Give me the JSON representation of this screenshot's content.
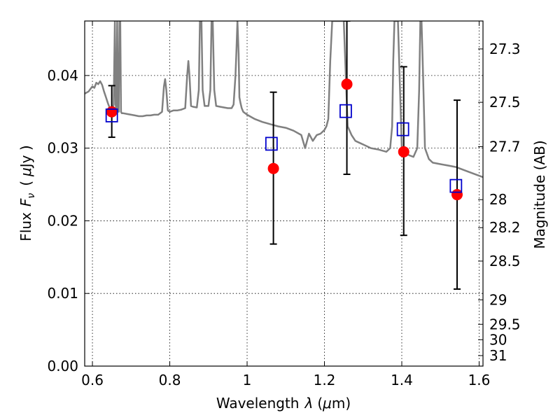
{
  "chart_data": {
    "type": "scatter",
    "title": "",
    "xlabel": "Wavelength",
    "xlabel_symbol": "λ",
    "xlabel_unit_open": "(",
    "xlabel_unit_mu": "μ",
    "xlabel_unit_rest": "m)",
    "ylabel": "Flux",
    "ylabel_symbol": "F",
    "ylabel_symbol_sub": "ν",
    "ylabel_unit_open": "(",
    "ylabel_unit_mu": "μ",
    "ylabel_unit_rest": "Jy )",
    "y2label": "Magnitude (AB)",
    "xlim": [
      0.58,
      1.61
    ],
    "ylim": [
      0.0,
      0.0475
    ],
    "grid": true,
    "x_ticks": [
      {
        "value": 0.6,
        "label": "0.6"
      },
      {
        "value": 0.8,
        "label": "0.8"
      },
      {
        "value": 1.0,
        "label": "1"
      },
      {
        "value": 1.2,
        "label": "1.2"
      },
      {
        "value": 1.4,
        "label": "1.4"
      },
      {
        "value": 1.6,
        "label": "1.6"
      }
    ],
    "y_ticks": [
      {
        "value": 0.0,
        "label": "0.00"
      },
      {
        "value": 0.01,
        "label": "0.01"
      },
      {
        "value": 0.02,
        "label": "0.02"
      },
      {
        "value": 0.03,
        "label": "0.03"
      },
      {
        "value": 0.04,
        "label": "0.04"
      }
    ],
    "y2_ticks": [
      {
        "mag": 27.3,
        "label": "27.3"
      },
      {
        "mag": 27.5,
        "label": "27.5"
      },
      {
        "mag": 27.7,
        "label": "27.7"
      },
      {
        "mag": 28.0,
        "label": "28"
      },
      {
        "mag": 28.2,
        "label": "28.2"
      },
      {
        "mag": 28.5,
        "label": "28.5"
      },
      {
        "mag": 29.0,
        "label": "29"
      },
      {
        "mag": 29.5,
        "label": "29.5"
      },
      {
        "mag": 30.0,
        "label": "30"
      },
      {
        "mag": 31.0,
        "label": "31"
      }
    ],
    "colors": {
      "observed": "#ff0000",
      "model": "#0000cc",
      "spectrum": "#808080",
      "errorbar": "#000000",
      "grid": "#000000"
    },
    "observed": [
      {
        "x": 0.65,
        "y": 0.035,
        "yerr_low": 0.0315,
        "yerr_high": 0.0386
      },
      {
        "x": 1.068,
        "y": 0.0272,
        "yerr_low": 0.0168,
        "yerr_high": 0.0377
      },
      {
        "x": 1.258,
        "y": 0.0388,
        "yerr_low": 0.0264,
        "yerr_high": 0.0475
      },
      {
        "x": 1.405,
        "y": 0.0295,
        "yerr_low": 0.018,
        "yerr_high": 0.0412
      },
      {
        "x": 1.543,
        "y": 0.0236,
        "yerr_low": 0.0106,
        "yerr_high": 0.0366
      }
    ],
    "model_points": [
      {
        "x": 0.65,
        "y": 0.0345
      },
      {
        "x": 1.063,
        "y": 0.0306
      },
      {
        "x": 1.255,
        "y": 0.0351
      },
      {
        "x": 1.403,
        "y": 0.0326
      },
      {
        "x": 1.54,
        "y": 0.0248
      }
    ],
    "spectrum": {
      "x": [
        0.58,
        0.59,
        0.6,
        0.605,
        0.61,
        0.615,
        0.62,
        0.625,
        0.63,
        0.635,
        0.64,
        0.645,
        0.65,
        0.655,
        0.658,
        0.66,
        0.662,
        0.664,
        0.666,
        0.668,
        0.67,
        0.672,
        0.674,
        0.676,
        0.68,
        0.69,
        0.7,
        0.71,
        0.72,
        0.73,
        0.74,
        0.75,
        0.76,
        0.77,
        0.78,
        0.785,
        0.788,
        0.791,
        0.795,
        0.8,
        0.81,
        0.82,
        0.83,
        0.84,
        0.845,
        0.848,
        0.851,
        0.855,
        0.86,
        0.87,
        0.875,
        0.878,
        0.88,
        0.882,
        0.885,
        0.89,
        0.895,
        0.9,
        0.905,
        0.908,
        0.911,
        0.915,
        0.92,
        0.93,
        0.94,
        0.95,
        0.96,
        0.965,
        0.97,
        0.972,
        0.975,
        0.978,
        0.98,
        0.983,
        0.986,
        0.99,
        1.0,
        1.02,
        1.04,
        1.06,
        1.08,
        1.1,
        1.12,
        1.14,
        1.15,
        1.16,
        1.17,
        1.18,
        1.19,
        1.2,
        1.205,
        1.21,
        1.215,
        1.22,
        1.23,
        1.24,
        1.25,
        1.26,
        1.27,
        1.28,
        1.3,
        1.32,
        1.34,
        1.36,
        1.37,
        1.375,
        1.378,
        1.381,
        1.385,
        1.39,
        1.4,
        1.41,
        1.42,
        1.43,
        1.44,
        1.445,
        1.448,
        1.451,
        1.455,
        1.46,
        1.47,
        1.48,
        1.5,
        1.52,
        1.54,
        1.56,
        1.58,
        1.6,
        1.61
      ],
      "y": [
        0.0375,
        0.0378,
        0.0385,
        0.0383,
        0.039,
        0.0388,
        0.0392,
        0.0387,
        0.0378,
        0.037,
        0.0362,
        0.0355,
        0.035,
        0.036,
        0.0475,
        0.036,
        0.0352,
        0.0475,
        0.0352,
        0.035,
        0.0475,
        0.0475,
        0.035,
        0.0348,
        0.0348,
        0.0347,
        0.0346,
        0.0345,
        0.0344,
        0.0344,
        0.0345,
        0.0345,
        0.0346,
        0.0346,
        0.035,
        0.0385,
        0.0395,
        0.038,
        0.0352,
        0.035,
        0.0352,
        0.0352,
        0.0353,
        0.0355,
        0.04,
        0.042,
        0.04,
        0.0358,
        0.0357,
        0.0356,
        0.038,
        0.0475,
        0.0475,
        0.0475,
        0.038,
        0.0358,
        0.0358,
        0.0358,
        0.038,
        0.0475,
        0.0475,
        0.038,
        0.0358,
        0.0357,
        0.0356,
        0.0355,
        0.0355,
        0.036,
        0.04,
        0.043,
        0.0475,
        0.043,
        0.037,
        0.0362,
        0.0355,
        0.035,
        0.0346,
        0.034,
        0.0336,
        0.0333,
        0.033,
        0.0328,
        0.0324,
        0.0318,
        0.03,
        0.032,
        0.031,
        0.0318,
        0.032,
        0.0325,
        0.033,
        0.034,
        0.042,
        0.0475,
        0.0475,
        0.0475,
        0.0475,
        0.033,
        0.0318,
        0.031,
        0.0305,
        0.03,
        0.0298,
        0.0295,
        0.03,
        0.033,
        0.042,
        0.0475,
        0.0475,
        0.0475,
        0.03,
        0.0293,
        0.029,
        0.0288,
        0.03,
        0.038,
        0.0475,
        0.0475,
        0.04,
        0.03,
        0.0285,
        0.028,
        0.0278,
        0.0276,
        0.0274,
        0.027,
        0.0266,
        0.0262,
        0.026
      ]
    }
  }
}
